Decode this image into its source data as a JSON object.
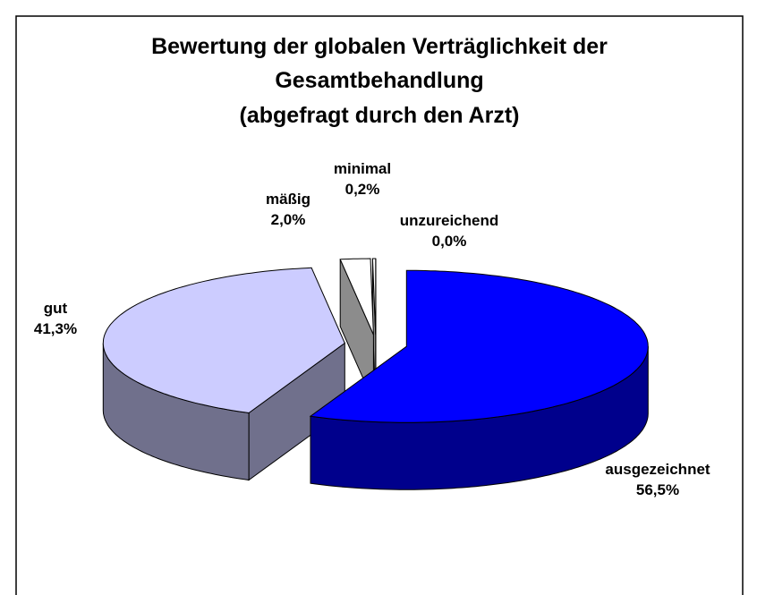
{
  "chart_data": {
    "type": "pie3d",
    "title": [
      "Bewertung der globalen Verträglichkeit der",
      "Gesamtbehandlung",
      "(abgefragt durch den Arzt)"
    ],
    "categories": [
      "ausgezeichnet",
      "gut",
      "mäßig",
      "minimal",
      "unzureichend"
    ],
    "values": [
      56.5,
      41.3,
      2.0,
      0.2,
      0.0
    ],
    "value_labels": [
      "56,5%",
      "41,3%",
      "2,0%",
      "0,2%",
      "0,0%"
    ],
    "colors": [
      "#0000ff",
      "#ccccff",
      "#ffffff",
      "#ffffff",
      "#ff0000"
    ]
  }
}
